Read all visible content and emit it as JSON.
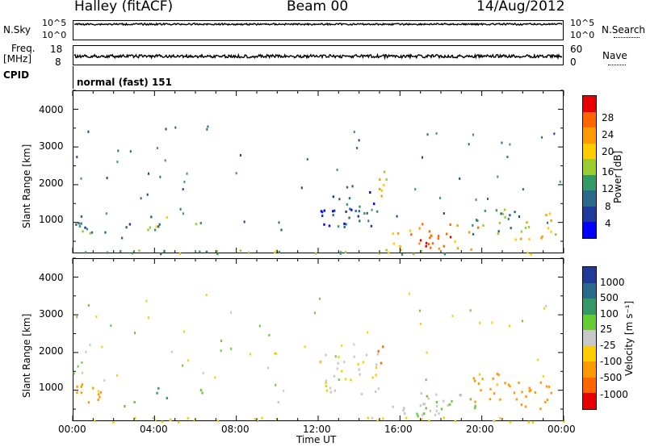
{
  "header": {
    "left": "Halley (fitACF)",
    "center": "Beam 00",
    "right": "14/Aug/2012"
  },
  "strips": {
    "nsky_label": "N.Sky",
    "nsky_ticks": [
      "10^5",
      "10^0"
    ],
    "nsearch_label": "N.Search",
    "nsearch_ticks": [
      "10^5",
      "10^0"
    ],
    "freq_label_1": "Freq.",
    "freq_label_2": "[MHz]",
    "freq_ticks": [
      "18",
      "8"
    ],
    "nave_label": "Nave",
    "nave_ticks": [
      "60",
      "0"
    ],
    "cpid_label": "CPID",
    "cpid_value": "normal (fast) 151"
  },
  "axes": {
    "x_ticks": [
      "00:00",
      "04:00",
      "08:00",
      "12:00",
      "16:00",
      "20:00",
      "00:00"
    ],
    "xlabel": "Time UT",
    "ylabel": "Slant Range [km]",
    "y_ticks": [
      "4000",
      "3000",
      "2000",
      "1000"
    ]
  },
  "power_colorbar": {
    "label": "Power [dB]",
    "ticks": [
      "28",
      "24",
      "20",
      "16",
      "12",
      "8",
      "4"
    ],
    "colors": [
      "#e60000",
      "#ff6600",
      "#ff9900",
      "#ffcc00",
      "#99cc33",
      "#339966",
      "#2b6b8a",
      "#1f3a99",
      "#0000ff"
    ]
  },
  "velocity_colorbar": {
    "label": "Velocity [m s⁻¹]",
    "ticks": [
      "1000",
      "500",
      "100",
      "25",
      "-25",
      "-100",
      "-500",
      "-1000"
    ],
    "colors": [
      "#1f3a99",
      "#2b6b8a",
      "#339966",
      "#66cc33",
      "#c8c8c8",
      "#ffcc00",
      "#ff9900",
      "#ff6600",
      "#e60000"
    ]
  },
  "chart_data": {
    "type": "heatmap",
    "title": "Halley (fitACF) Beam 00 14/Aug/2012",
    "xlabel": "Time UT",
    "ylabel": "Slant Range [km]",
    "xlim": [
      "00:00",
      "24:00"
    ],
    "ylim": [
      180,
      4500
    ],
    "power_range_dB": [
      0,
      30
    ],
    "velocity_range_ms": [
      -1000,
      1000
    ],
    "echo_regions": [
      {
        "t_start": 0.0,
        "t_end": 1.6,
        "r_min": 700,
        "r_max": 1250,
        "power_dB": 10,
        "velocity": -150
      },
      {
        "t_start": 2.3,
        "t_end": 3.0,
        "r_min": 600,
        "r_max": 1000,
        "power_dB": 8,
        "velocity": 60
      },
      {
        "t_start": 3.5,
        "t_end": 4.6,
        "r_min": 700,
        "r_max": 1200,
        "power_dB": 14,
        "velocity": 200
      },
      {
        "t_start": 5.9,
        "t_end": 6.6,
        "r_min": 750,
        "r_max": 1050,
        "power_dB": 12,
        "velocity": 60
      },
      {
        "t_start": 9.6,
        "t_end": 10.4,
        "r_min": 700,
        "r_max": 900,
        "power_dB": 6,
        "velocity": 10
      },
      {
        "t_start": 12.0,
        "t_end": 15.0,
        "r_min": 900,
        "r_max": 2000,
        "power_dB": 6,
        "velocity": -20
      },
      {
        "t_start": 14.9,
        "t_end": 15.4,
        "r_min": 1600,
        "r_max": 2400,
        "power_dB": 18,
        "velocity": -700
      },
      {
        "t_start": 15.6,
        "t_end": 19.8,
        "r_min": 300,
        "r_max": 1000,
        "power_dB": 22,
        "velocity": 20
      },
      {
        "t_start": 16.8,
        "t_end": 18.6,
        "r_min": 400,
        "r_max": 750,
        "power_dB": 28,
        "velocity": 0
      },
      {
        "t_start": 19.5,
        "t_end": 21.6,
        "r_min": 700,
        "r_max": 1500,
        "power_dB": 12,
        "velocity": -120
      },
      {
        "t_start": 21.6,
        "t_end": 23.6,
        "r_min": 500,
        "r_max": 1300,
        "power_dB": 18,
        "velocity": -300
      },
      {
        "t_start": 0.0,
        "t_end": 24.0,
        "r_min": 180,
        "r_max": 300,
        "power_dB": 14,
        "velocity": -60
      }
    ]
  }
}
